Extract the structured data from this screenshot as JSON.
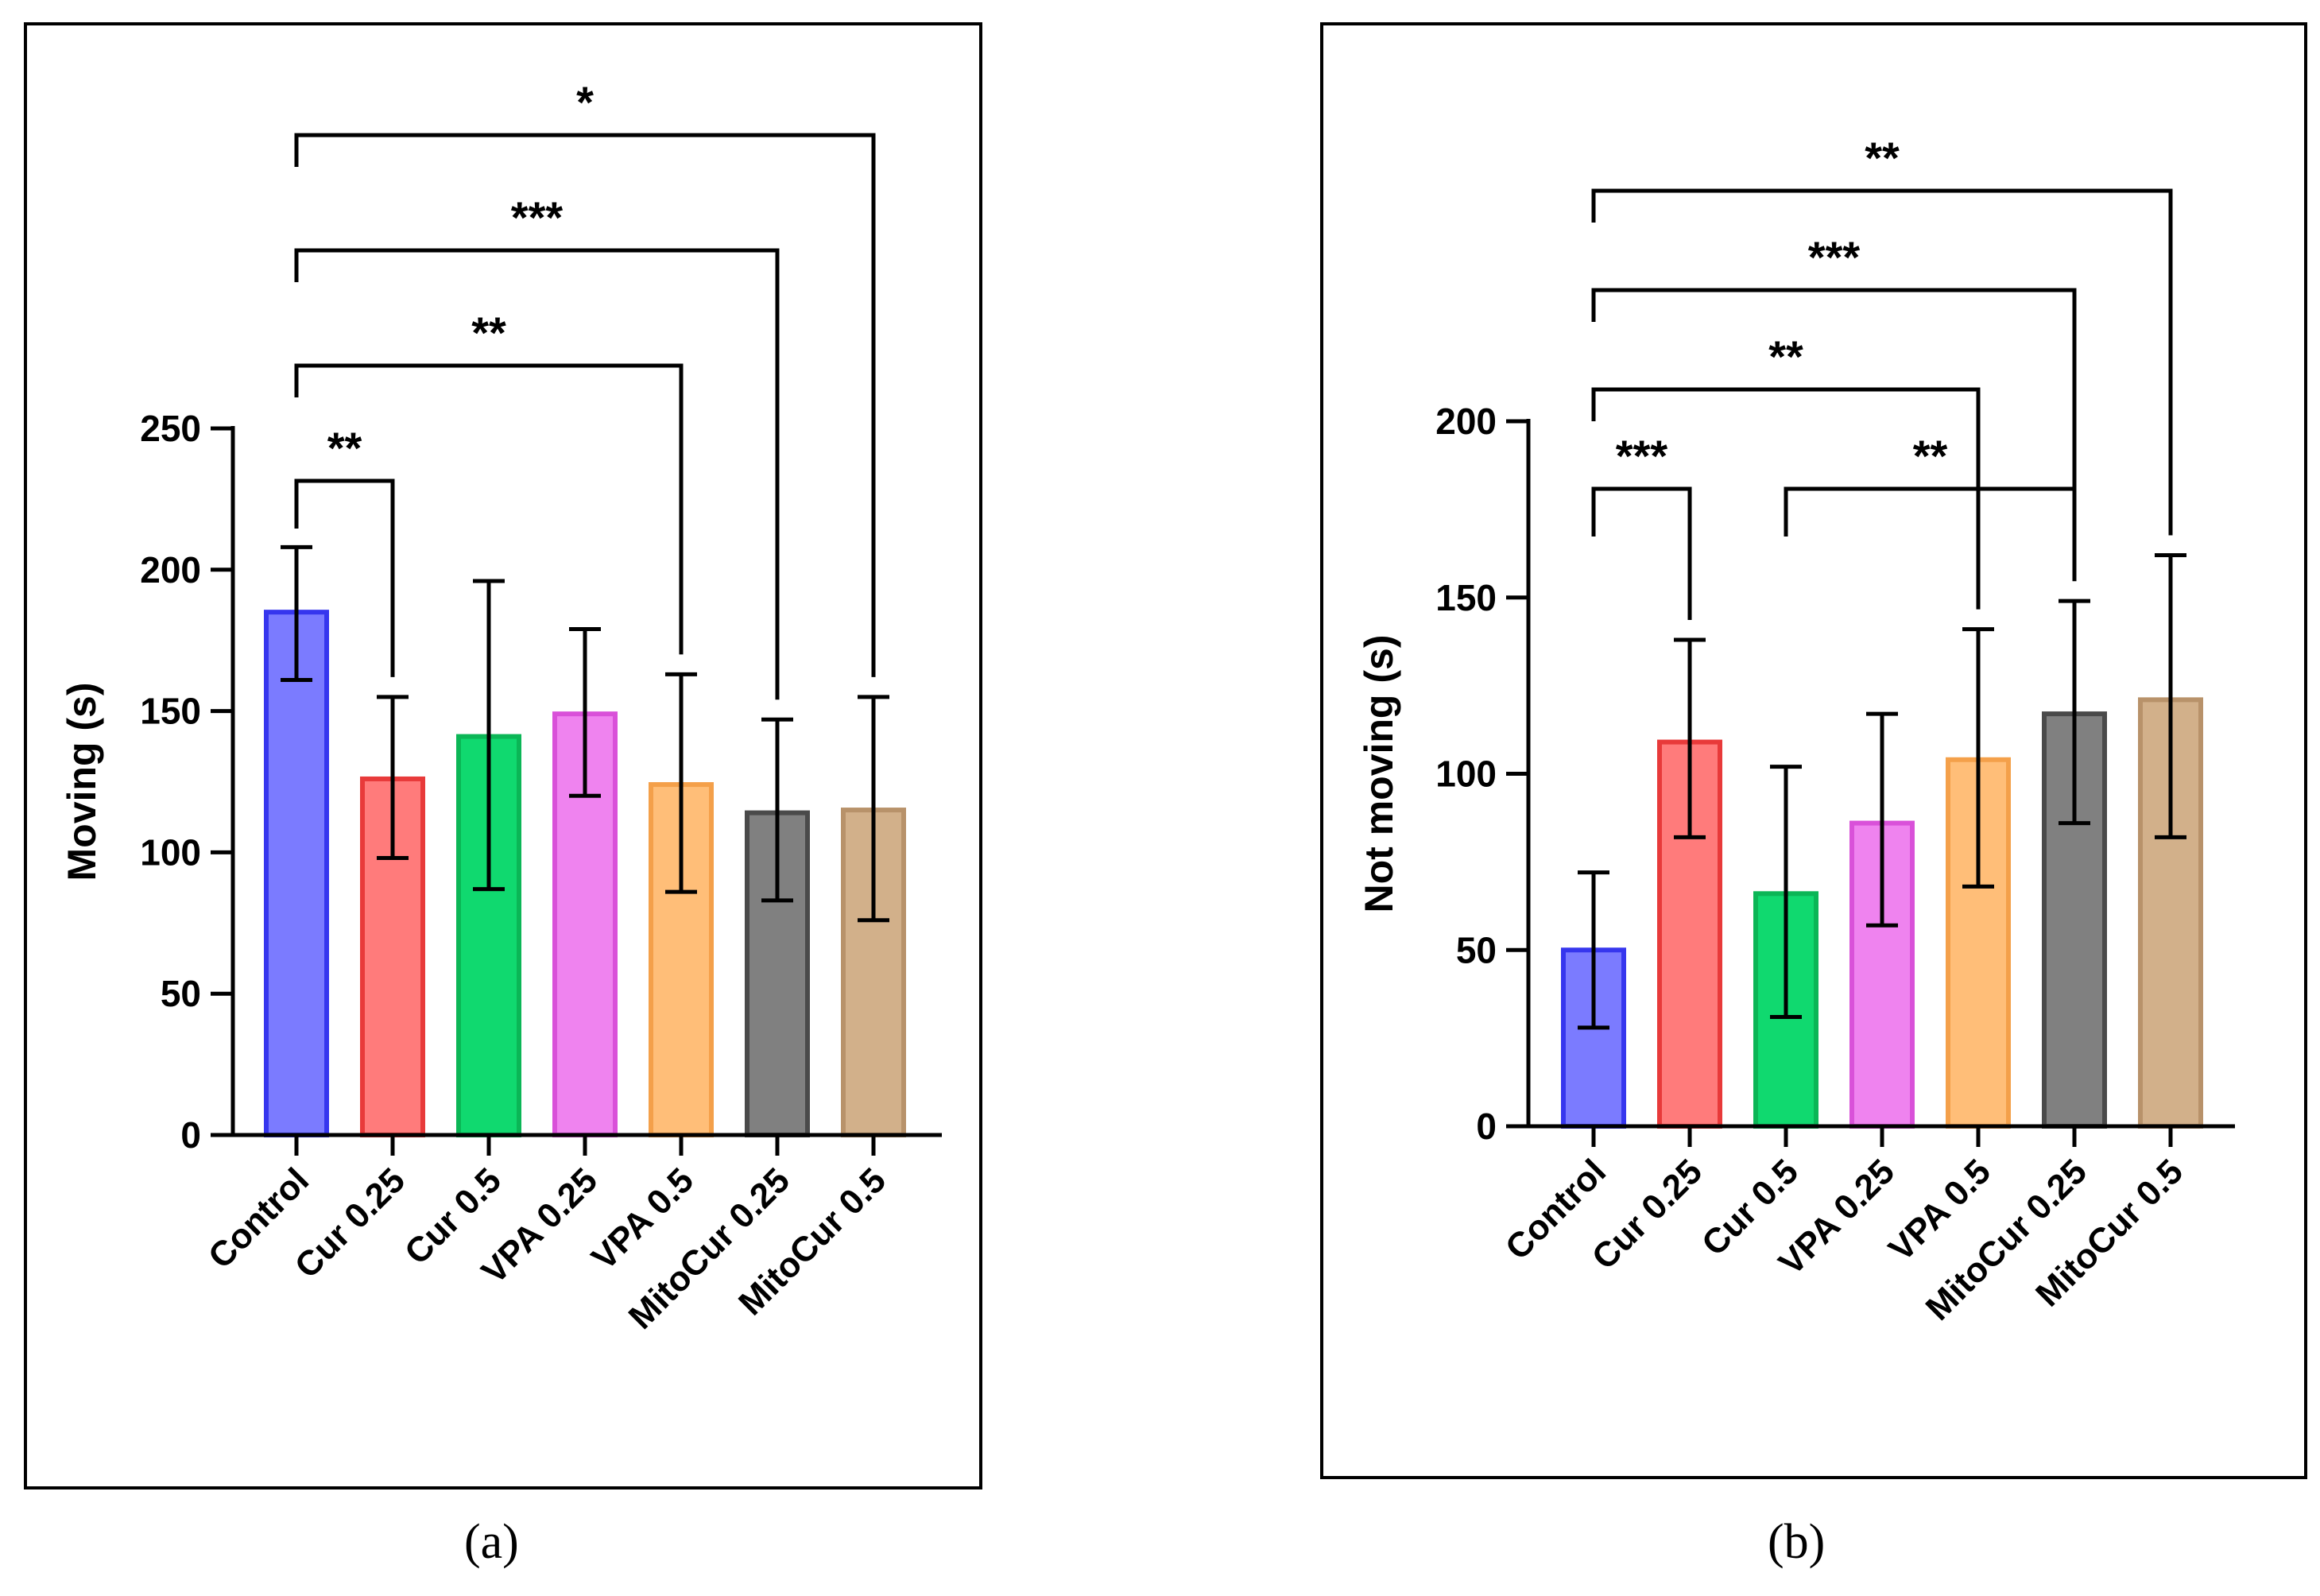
{
  "colors": {
    "Control": "#7b7bff",
    "Cur 0.25": "#ff7b7b",
    "Cur 0.5": "#10d96f",
    "VPA 0.25": "#ef83ef",
    "VPA 0.5": "#ffbe78",
    "MitoCur 0.25": "#808080",
    "MitoCur 0.5": "#d2b08a"
  },
  "edge_colors": {
    "Control": "#3636ee",
    "Cur 0.25": "#e83a3a",
    "Cur 0.5": "#0bb656",
    "VPA 0.25": "#d951d9",
    "VPA 0.5": "#f4a04a",
    "MitoCur 0.25": "#4a4a4a",
    "MitoCur 0.5": "#b8926a"
  },
  "chart_data": [
    {
      "id": "a",
      "type": "bar",
      "panel_label": "(a)",
      "title": "",
      "xlabel": "",
      "ylabel": "Moving (s)",
      "ylim": [
        0,
        250
      ],
      "yticks": [
        0,
        50,
        100,
        150,
        200,
        250
      ],
      "categories": [
        "Control",
        "Cur 0.25",
        "Cur 0.5",
        "VPA 0.25",
        "VPA 0.5",
        "MitoCur 0.25",
        "MitoCur 0.5"
      ],
      "values": [
        185,
        126,
        141,
        149,
        124,
        114,
        115
      ],
      "error_low": [
        161,
        98,
        87,
        120,
        86,
        83,
        76
      ],
      "error_high": [
        208,
        155,
        196,
        179,
        163,
        147,
        155
      ],
      "significance": [
        {
          "from": "Control",
          "to": "Cur 0.25",
          "label": "**",
          "level": 1
        },
        {
          "from": "Control",
          "to": "VPA 0.5",
          "label": "**",
          "level": 2
        },
        {
          "from": "Control",
          "to": "MitoCur 0.25",
          "label": "***",
          "level": 3
        },
        {
          "from": "Control",
          "to": "MitoCur 0.5",
          "label": "*",
          "level": 4
        }
      ]
    },
    {
      "id": "b",
      "type": "bar",
      "panel_label": "(b)",
      "title": "",
      "xlabel": "",
      "ylabel": "Not moving (s)",
      "ylim": [
        0,
        200
      ],
      "yticks": [
        0,
        50,
        100,
        150,
        200
      ],
      "categories": [
        "Control",
        "Cur 0.25",
        "Cur 0.5",
        "VPA 0.25",
        "VPA 0.5",
        "MitoCur 0.25",
        "MitoCur 0.5"
      ],
      "values": [
        50,
        109,
        66,
        86,
        104,
        117,
        121
      ],
      "error_low": [
        28,
        82,
        31,
        57,
        68,
        86,
        82
      ],
      "error_high": [
        72,
        138,
        102,
        117,
        141,
        149,
        162
      ],
      "significance": [
        {
          "from": "Control",
          "to": "Cur 0.25",
          "label": "***",
          "level": 1
        },
        {
          "from": "Cur 0.5",
          "to": "MitoCur 0.25",
          "label": "**",
          "level": 1
        },
        {
          "from": "Control",
          "to": "VPA 0.5",
          "label": "**",
          "level": 2
        },
        {
          "from": "Control",
          "to": "MitoCur 0.25",
          "label": "***",
          "level": 3
        },
        {
          "from": "Control",
          "to": "MitoCur 0.5",
          "label": "**",
          "level": 4
        }
      ]
    }
  ]
}
